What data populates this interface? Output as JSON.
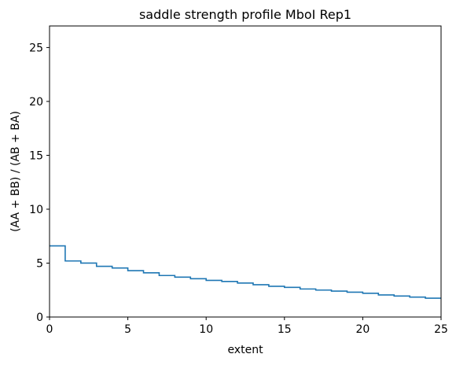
{
  "chart_data": {
    "type": "line",
    "drawstyle": "steps-post",
    "title": "saddle strength profile MboI Rep1",
    "xlabel": "extent",
    "ylabel": "(AA + BB) / (AB + BA)",
    "xlim": [
      0,
      25
    ],
    "ylim": [
      0,
      27
    ],
    "xticks": [
      0,
      5,
      10,
      15,
      20,
      25
    ],
    "yticks": [
      0,
      5,
      10,
      15,
      20,
      25
    ],
    "grid": false,
    "series": [
      {
        "color": "#1f77b4",
        "x": [
          0,
          1,
          2,
          3,
          4,
          5,
          6,
          7,
          8,
          9,
          10,
          11,
          12,
          13,
          14,
          15,
          16,
          17,
          18,
          19,
          20,
          21,
          22,
          23,
          24,
          25
        ],
        "values": [
          6.6,
          5.2,
          5.0,
          4.7,
          4.55,
          4.3,
          4.1,
          3.85,
          3.7,
          3.55,
          3.4,
          3.3,
          3.15,
          3.0,
          2.85,
          2.75,
          2.6,
          2.5,
          2.4,
          2.3,
          2.2,
          2.05,
          1.95,
          1.85,
          1.75,
          1.75
        ]
      }
    ]
  }
}
